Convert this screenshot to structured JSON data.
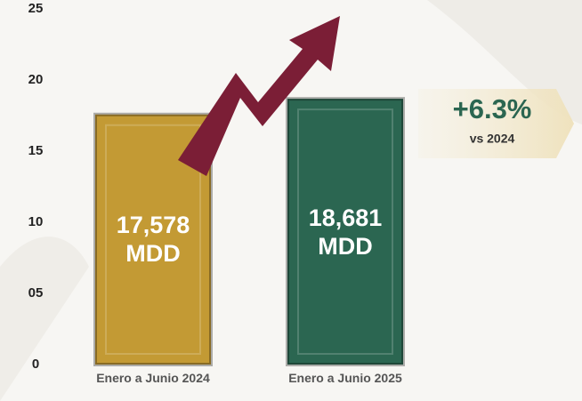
{
  "chart_data": {
    "type": "bar",
    "categories": [
      "Enero a Junio 2024",
      "Enero a Junio 2025"
    ],
    "values": [
      17.578,
      18.681
    ],
    "value_labels": [
      "17,578 MDD",
      "18,681 MDD"
    ],
    "colors": [
      "#c39a34",
      "#2b6651"
    ],
    "ylim": [
      0,
      25
    ],
    "yticks": [
      0,
      {
        "value": 5,
        "label": "05"
      },
      10,
      15,
      20,
      25
    ],
    "annotation": "+6.3%",
    "annotation_sub": "vs 2024"
  }
}
